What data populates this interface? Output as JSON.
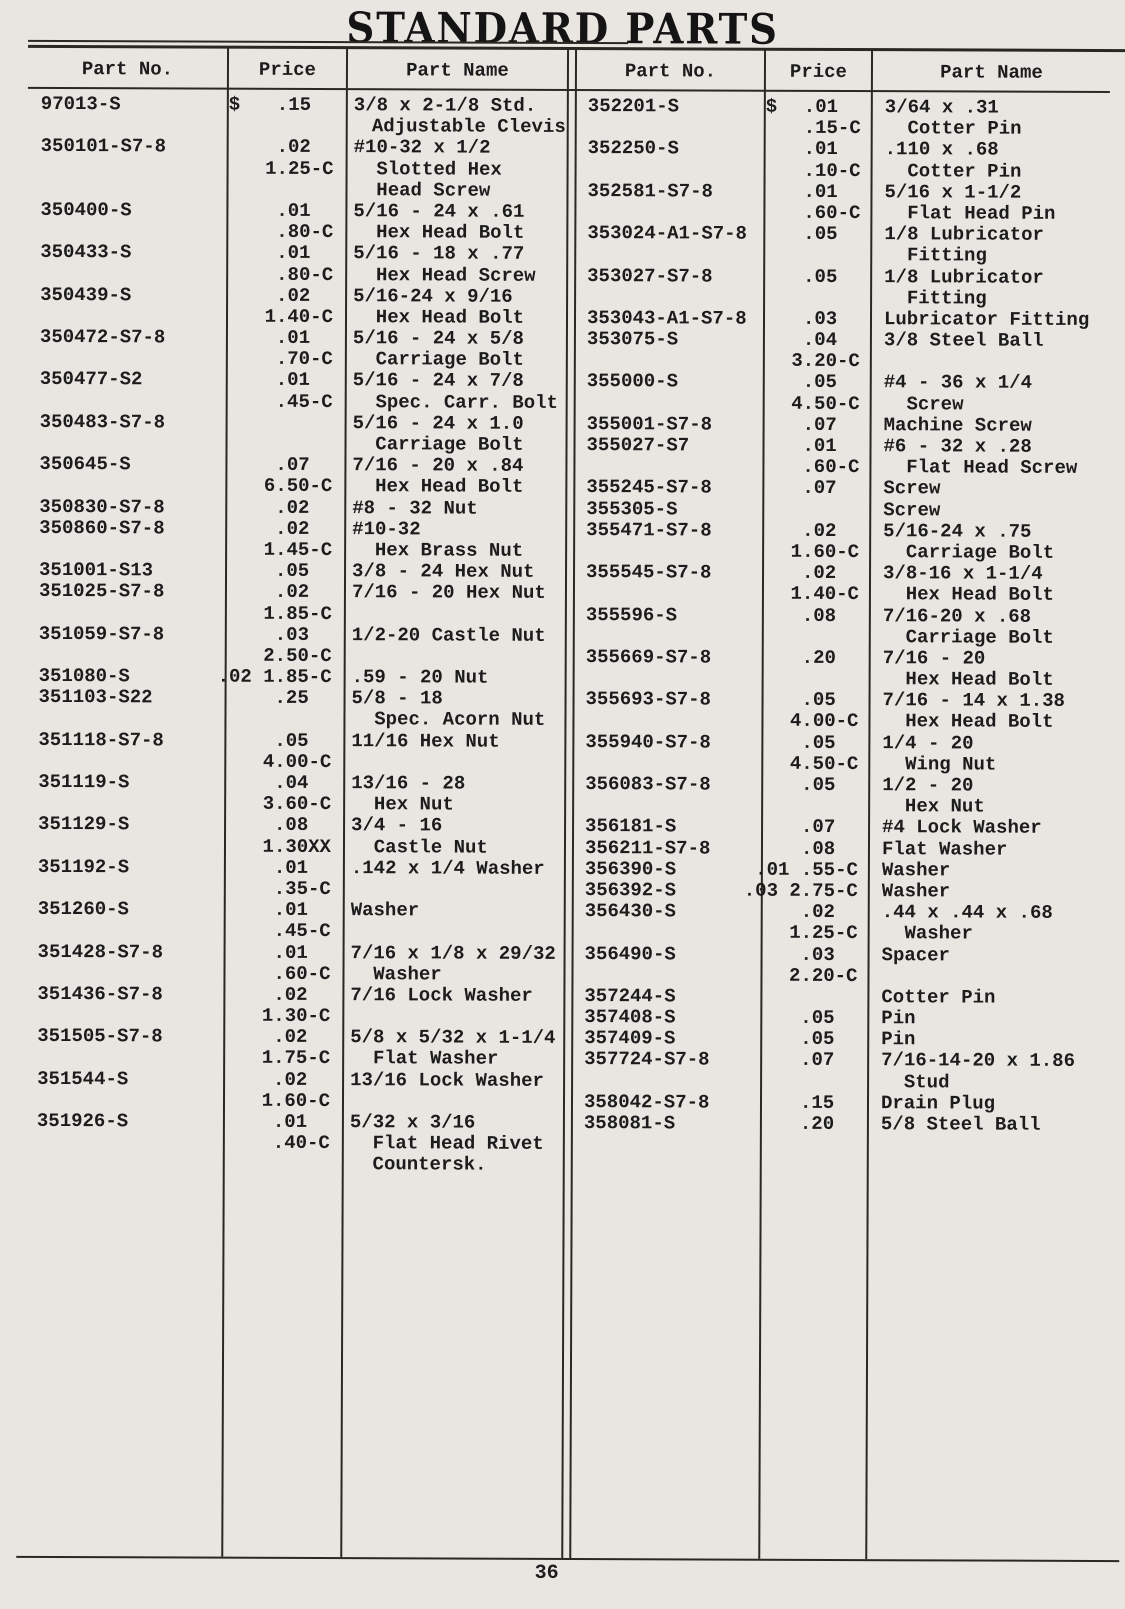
{
  "page": {
    "title": "STANDARD PARTS",
    "number": "36"
  },
  "colors": {
    "paper": "#e9e6e1",
    "ink": "#1c1c1c",
    "rule": "#2a2822"
  },
  "headers": {
    "part_no": "Part No.",
    "price": "Price",
    "part_name": "Part Name"
  },
  "tables": [
    {
      "side": "left",
      "rows": [
        {
          "part": "97013-S",
          "cur": "$",
          "price": ".15  ",
          "name": "3/8 x 2-1/8 Std."
        },
        {
          "name": "  Adjustable Clevis"
        },
        {
          "part": "350101-S7-8",
          "price": ".02  ",
          "name": "#10-32 x 1/2"
        },
        {
          "price": "1.25-C",
          "name": "  Slotted Hex"
        },
        {
          "name": "  Head Screw"
        },
        {
          "part": "350400-S",
          "price": ".01  ",
          "name": "5/16 - 24 x .61"
        },
        {
          "price": ".80-C",
          "name": "  Hex Head Bolt"
        },
        {
          "part": "350433-S",
          "price": ".01  ",
          "name": "5/16 - 18 x .77"
        },
        {
          "price": ".80-C",
          "name": "  Hex Head Screw"
        },
        {
          "part": "350439-S",
          "price": ".02  ",
          "name": "5/16-24 x 9/16"
        },
        {
          "price": "1.40-C",
          "name": "  Hex Head Bolt"
        },
        {
          "part": "350472-S7-8",
          "price": ".01  ",
          "name": "5/16 - 24 x 5/8"
        },
        {
          "price": ".70-C",
          "name": "  Carriage Bolt"
        },
        {
          "part": "350477-S2",
          "price": ".01  ",
          "name": "5/16 - 24 x 7/8"
        },
        {
          "price": ".45-C",
          "name": "  Spec. Carr. Bolt"
        },
        {
          "part": "350483-S7-8",
          "name": "5/16 - 24 x 1.0"
        },
        {
          "name": "  Carriage Bolt"
        },
        {
          "part": "350645-S",
          "price": ".07  ",
          "name": "7/16 - 20 x .84"
        },
        {
          "price": "6.50-C",
          "name": "  Hex Head Bolt"
        },
        {
          "part": "350830-S7-8",
          "price": ".02  ",
          "name": "#8 - 32 Nut"
        },
        {
          "part": "350860-S7-8",
          "price": ".02  ",
          "name": "#10-32"
        },
        {
          "price": "1.45-C",
          "name": "  Hex Brass Nut"
        },
        {
          "part": "351001-S13",
          "price": ".05  ",
          "name": "3/8 - 24 Hex Nut"
        },
        {
          "part": "351025-S7-8",
          "price": ".02  ",
          "name": "7/16 - 20 Hex Nut"
        },
        {
          "price": "1.85-C"
        },
        {
          "part": "351059-S7-8",
          "price": ".03  ",
          "name": "1/2-20 Castle Nut"
        },
        {
          "price": "2.50-C"
        },
        {
          "part": "351080-S",
          "price": ".02 1.85-C",
          "name": ".59 - 20 Nut"
        },
        {
          "part": "351103-S22",
          "price": ".25  ",
          "name": "5/8 - 18"
        },
        {
          "name": "  Spec. Acorn Nut"
        },
        {
          "part": "351118-S7-8",
          "price": ".05  ",
          "name": "11/16 Hex Nut"
        },
        {
          "price": "4.00-C"
        },
        {
          "part": "351119-S",
          "price": ".04  ",
          "name": "13/16 - 28"
        },
        {
          "price": "3.60-C",
          "name": "  Hex Nut"
        },
        {
          "part": "351129-S",
          "price": ".08  ",
          "name": "3/4 - 16"
        },
        {
          "price": "1.30XX",
          "name": "  Castle Nut"
        },
        {
          "part": "351192-S",
          "price": ".01  ",
          "name": ".142 x 1/4 Washer"
        },
        {
          "price": ".35-C"
        },
        {
          "part": "351260-S",
          "price": ".01  ",
          "name": "Washer"
        },
        {
          "price": ".45-C"
        },
        {
          "part": "351428-S7-8",
          "price": ".01  ",
          "name": "7/16 x 1/8 x 29/32"
        },
        {
          "price": ".60-C",
          "name": "  Washer"
        },
        {
          "part": "351436-S7-8",
          "price": ".02  ",
          "name": "7/16 Lock Washer"
        },
        {
          "price": "1.30-C"
        },
        {
          "part": "351505-S7-8",
          "price": ".02  ",
          "name": "5/8 x 5/32 x 1-1/4"
        },
        {
          "price": "1.75-C",
          "name": "  Flat Washer"
        },
        {
          "part": "351544-S",
          "price": ".02  ",
          "name": "13/16 Lock Washer"
        },
        {
          "price": "1.60-C"
        },
        {
          "part": "351926-S",
          "price": ".01  ",
          "name": "5/32 x 3/16"
        },
        {
          "price": ".40-C",
          "name": "  Flat Head Rivet"
        },
        {
          "name": "  Countersk."
        }
      ]
    },
    {
      "side": "right",
      "rows": [
        {
          "part": "352201-S",
          "cur": "$",
          "price": ".01  ",
          "name": "3/64 x .31"
        },
        {
          "price": ".15-C",
          "name": "  Cotter Pin"
        },
        {
          "part": "352250-S",
          "price": ".01  ",
          "name": ".110 x .68"
        },
        {
          "price": ".10-C",
          "name": "  Cotter Pin"
        },
        {
          "part": "352581-S7-8",
          "price": ".01  ",
          "name": "5/16 x 1-1/2"
        },
        {
          "price": ".60-C",
          "name": "  Flat Head Pin"
        },
        {
          "part": "353024-A1-S7-8",
          "price": ".05  ",
          "name": "1/8 Lubricator"
        },
        {
          "name": "  Fitting"
        },
        {
          "part": "353027-S7-8",
          "price": ".05  ",
          "name": "1/8 Lubricator"
        },
        {
          "name": "  Fitting"
        },
        {
          "part": "353043-A1-S7-8",
          "price": ".03  ",
          "name": "Lubricator Fitting"
        },
        {
          "part": "353075-S",
          "price": ".04  ",
          "name": "3/8 Steel Ball"
        },
        {
          "price": "3.20-C"
        },
        {
          "part": "355000-S",
          "price": ".05  ",
          "name": "#4 - 36 x 1/4"
        },
        {
          "price": "4.50-C",
          "name": "  Screw"
        },
        {
          "part": "355001-S7-8",
          "price": ".07  ",
          "name": "Machine Screw"
        },
        {
          "part": "355027-S7",
          "price": ".01  ",
          "name": "#6 - 32 x .28"
        },
        {
          "price": ".60-C",
          "name": "  Flat Head Screw"
        },
        {
          "part": "355245-S7-8",
          "price": ".07  ",
          "name": "Screw"
        },
        {
          "part": "355305-S",
          "name": "Screw"
        },
        {
          "part": "355471-S7-8",
          "price": ".02  ",
          "name": "5/16-24 x .75"
        },
        {
          "price": "1.60-C",
          "name": "  Carriage Bolt"
        },
        {
          "part": "355545-S7-8",
          "price": ".02  ",
          "name": "3/8-16 x 1-1/4"
        },
        {
          "price": "1.40-C",
          "name": "  Hex Head Bolt"
        },
        {
          "part": "355596-S",
          "price": ".08  ",
          "name": "7/16-20 x .68"
        },
        {
          "name": "  Carriage Bolt"
        },
        {
          "part": "355669-S7-8",
          "price": ".20  ",
          "name": "7/16 - 20"
        },
        {
          "name": "  Hex Head Bolt"
        },
        {
          "part": "355693-S7-8",
          "price": ".05  ",
          "name": "7/16 - 14 x 1.38"
        },
        {
          "price": "4.00-C",
          "name": "  Hex Head Bolt"
        },
        {
          "part": "355940-S7-8",
          "price": ".05  ",
          "name": "1/4 - 20"
        },
        {
          "price": "4.50-C",
          "name": "  Wing Nut"
        },
        {
          "part": "356083-S7-8",
          "price": ".05  ",
          "name": "1/2 - 20"
        },
        {
          "name": "  Hex Nut"
        },
        {
          "part": "356181-S",
          "price": ".07  ",
          "name": "#4 Lock Washer"
        },
        {
          "part": "356211-S7-8",
          "price": ".08  ",
          "name": "Flat Washer"
        },
        {
          "part": "356390-S",
          "price": ".01 .55-C",
          "name": "Washer"
        },
        {
          "part": "356392-S",
          "price": ".03 2.75-C",
          "name": "Washer"
        },
        {
          "part": "356430-S",
          "price": ".02  ",
          "name": ".44 x .44 x .68"
        },
        {
          "price": "1.25-C",
          "name": "  Washer"
        },
        {
          "part": "356490-S",
          "price": ".03  ",
          "name": "Spacer"
        },
        {
          "price": "2.20-C"
        },
        {
          "part": "357244-S",
          "name": "Cotter Pin"
        },
        {
          "part": "357408-S",
          "price": ".05  ",
          "name": "Pin"
        },
        {
          "part": "357409-S",
          "price": ".05  ",
          "name": "Pin"
        },
        {
          "part": "357724-S7-8",
          "price": ".07  ",
          "name": "7/16-14-20 x 1.86"
        },
        {
          "name": "  Stud"
        },
        {
          "part": "358042-S7-8",
          "price": ".15  ",
          "name": "Drain Plug"
        },
        {
          "part": "358081-S",
          "price": ".20  ",
          "name": "5/8 Steel Ball"
        }
      ]
    }
  ]
}
